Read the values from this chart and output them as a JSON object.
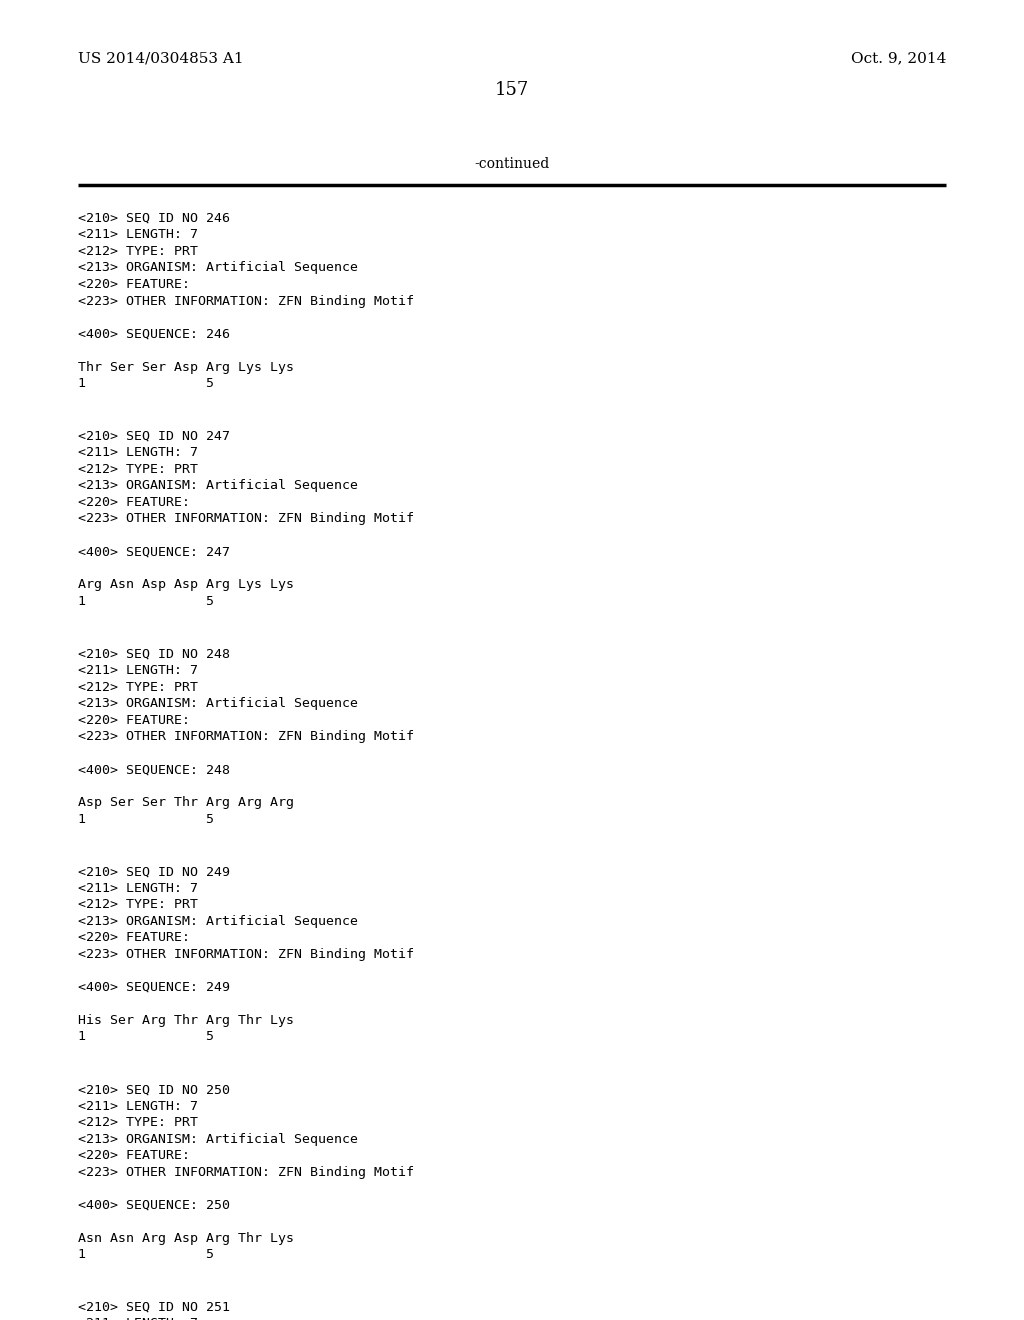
{
  "background_color": "#ffffff",
  "header_left": "US 2014/0304853 A1",
  "header_right": "Oct. 9, 2014",
  "page_number": "157",
  "continued_text": "-continued",
  "entries": [
    {
      "seq_id": "246",
      "length": "7",
      "type": "PRT",
      "organism": "Artificial Sequence",
      "other_info": "ZFN Binding Motif",
      "sequence_line": "Thr Ser Ser Asp Arg Lys Lys",
      "numbering": "1               5"
    },
    {
      "seq_id": "247",
      "length": "7",
      "type": "PRT",
      "organism": "Artificial Sequence",
      "other_info": "ZFN Binding Motif",
      "sequence_line": "Arg Asn Asp Asp Arg Lys Lys",
      "numbering": "1               5"
    },
    {
      "seq_id": "248",
      "length": "7",
      "type": "PRT",
      "organism": "Artificial Sequence",
      "other_info": "ZFN Binding Motif",
      "sequence_line": "Asp Ser Ser Thr Arg Arg Arg",
      "numbering": "1               5"
    },
    {
      "seq_id": "249",
      "length": "7",
      "type": "PRT",
      "organism": "Artificial Sequence",
      "other_info": "ZFN Binding Motif",
      "sequence_line": "His Ser Arg Thr Arg Thr Lys",
      "numbering": "1               5"
    },
    {
      "seq_id": "250",
      "length": "7",
      "type": "PRT",
      "organism": "Artificial Sequence",
      "other_info": "ZFN Binding Motif",
      "sequence_line": "Asn Asn Arg Asp Arg Thr Lys",
      "numbering": "1               5"
    },
    {
      "seq_id": "251",
      "length": "7",
      "type": "PRT",
      "organism": "Artificial Sequence",
      "other_info": "ZFN Binding Motif",
      "sequence_line": "",
      "numbering": ""
    }
  ]
}
